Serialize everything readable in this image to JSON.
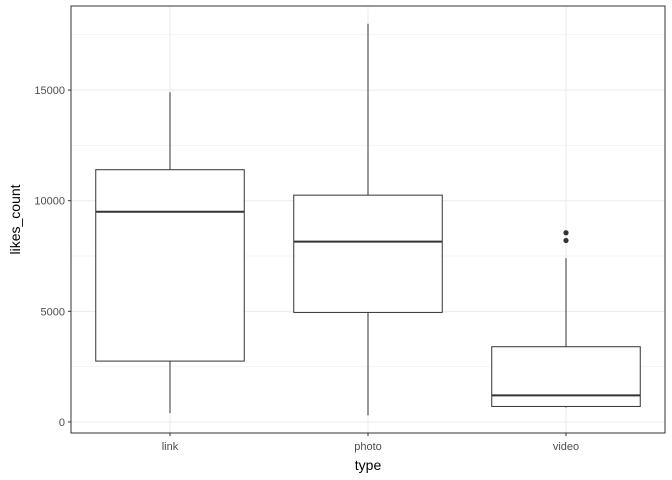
{
  "chart_data": {
    "type": "boxplot",
    "xlabel": "type",
    "ylabel": "likes_count",
    "categories": [
      "link",
      "photo",
      "video"
    ],
    "ylim": [
      -500,
      18800
    ],
    "yticks": [
      0,
      5000,
      10000,
      15000
    ],
    "ytick_labels": [
      "0",
      "5000",
      "10000",
      "15000"
    ],
    "grid": true,
    "boxes": [
      {
        "category": "link",
        "min": 400,
        "q1": 2750,
        "median": 9500,
        "q3": 11400,
        "max": 14900,
        "outliers": []
      },
      {
        "category": "photo",
        "min": 300,
        "q1": 4950,
        "median": 8150,
        "q3": 10250,
        "max": 18000,
        "outliers": []
      },
      {
        "category": "video",
        "min": 650,
        "q1": 700,
        "median": 1200,
        "q3": 3400,
        "max": 7400,
        "outliers": [
          8200,
          8550
        ]
      }
    ],
    "colors": {
      "grid": "#ebebeb",
      "border": "#333333",
      "box": "#333333",
      "fill": "#ffffff"
    }
  }
}
